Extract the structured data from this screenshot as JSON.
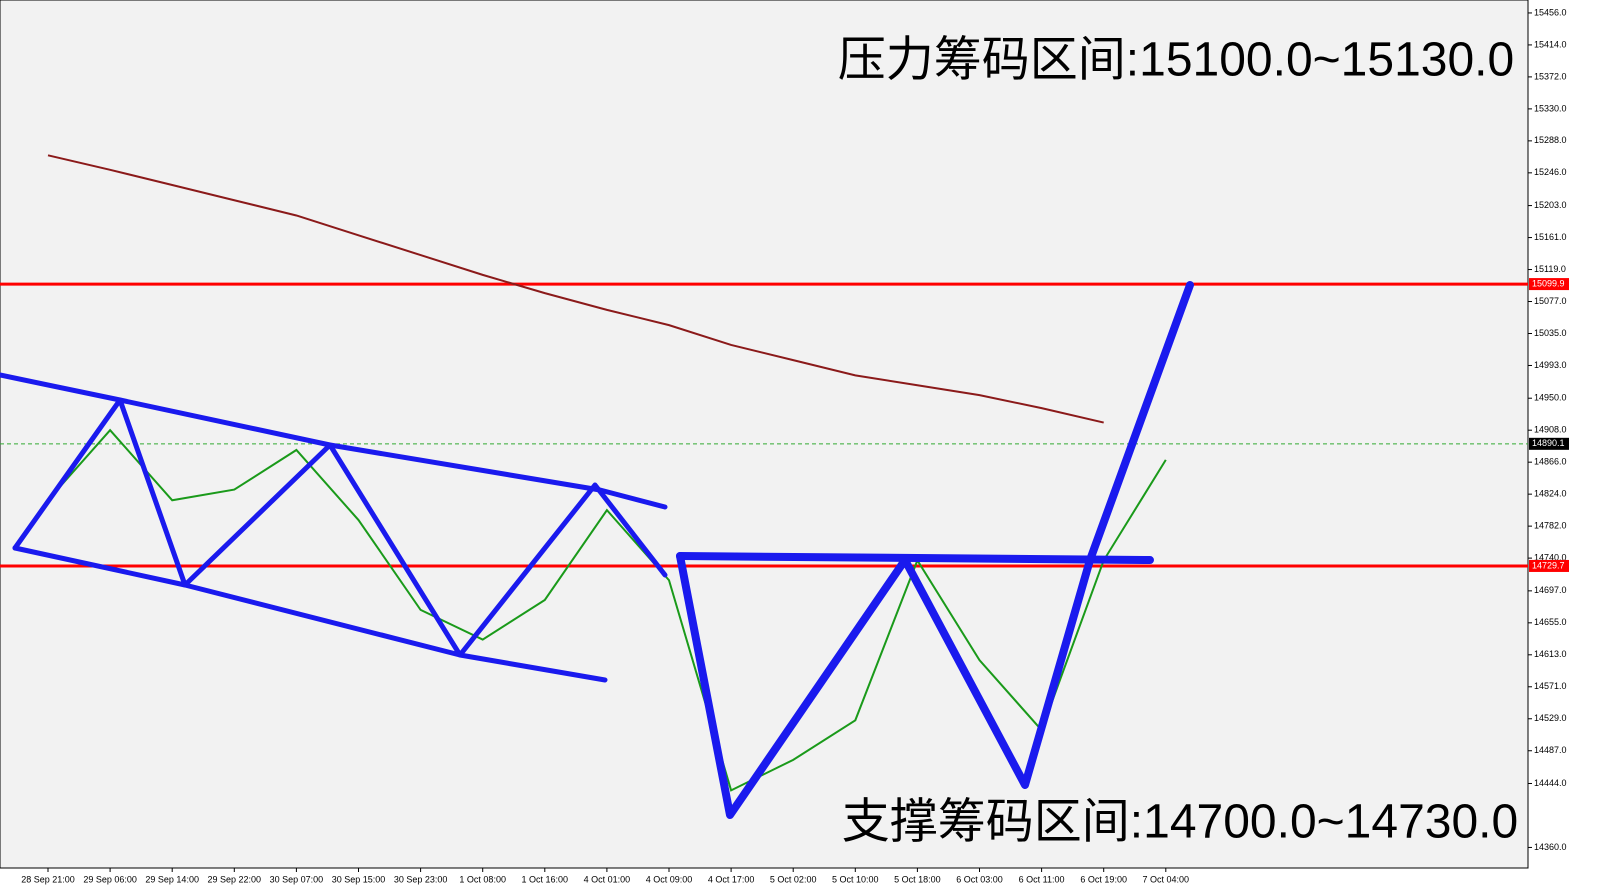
{
  "chart_data": {
    "type": "line",
    "annotations": [
      "压力筹码区间:15100.0~15130.0",
      "支撑筹码区间:14700.0~14730.0"
    ],
    "categories": [
      "28 Sep 21:00",
      "29 Sep 06:00",
      "29 Sep 14:00",
      "29 Sep 22:00",
      "30 Sep 07:00",
      "30 Sep 15:00",
      "30 Sep 23:00",
      "1 Oct 08:00",
      "1 Oct 16:00",
      "4 Oct 01:00",
      "4 Oct 09:00",
      "4 Oct 17:00",
      "5 Oct 02:00",
      "5 Oct 10:00",
      "5 Oct 18:00",
      "6 Oct 03:00",
      "6 Oct 11:00",
      "6 Oct 19:00",
      "7 Oct 04:00"
    ],
    "series": [
      {
        "color": "#1a9a1a",
        "values": [
          14816,
          14908,
          14816,
          14830,
          14882,
          14790,
          14672,
          14633,
          14685,
          14803,
          14711,
          14435,
          14475,
          14527,
          14737,
          14606,
          14514,
          14737,
          14869
        ]
      },
      {
        "color": "#8b1a1a",
        "values": [
          15269,
          15250,
          15230,
          15210,
          15190,
          15164,
          15138,
          15112,
          15088,
          15066,
          15046,
          15020,
          15000,
          14980,
          14967,
          14954,
          14937,
          14918,
          null
        ]
      }
    ],
    "levels": [
      {
        "value": 15099.9,
        "color": "#ff0000"
      },
      {
        "value": 14890.1,
        "color": "#000000"
      },
      {
        "value": 14729.7,
        "color": "#ff0000"
      }
    ],
    "ylim": [
      14333,
      15473
    ],
    "yticks": [
      {
        "value": 15456,
        "label": "15456.0"
      },
      {
        "value": 15414,
        "label": "15414.0"
      },
      {
        "value": 15372,
        "label": "15372.0"
      },
      {
        "value": 15330,
        "label": "15330.0"
      },
      {
        "value": 15288,
        "label": "15288.0"
      },
      {
        "value": 15246,
        "label": "15246.0"
      },
      {
        "value": 15203,
        "label": "15203.0"
      },
      {
        "value": 15161,
        "label": "15161.0"
      },
      {
        "value": 15119,
        "label": "15119.0"
      },
      {
        "value": 15077,
        "label": "15077.0"
      },
      {
        "value": 15035,
        "label": "15035.0"
      },
      {
        "value": 14993,
        "label": "14993.0"
      },
      {
        "value": 14950,
        "label": "14950.0"
      },
      {
        "value": 14908,
        "label": "14908.0"
      },
      {
        "value": 14866,
        "label": "14866.0"
      },
      {
        "value": 14824,
        "label": "14824.0"
      },
      {
        "value": 14782,
        "label": "14782.0"
      },
      {
        "value": 14740,
        "label": "14740.0"
      },
      {
        "value": 14697,
        "label": "14697.0"
      },
      {
        "value": 14655,
        "label": "14655.0"
      },
      {
        "value": 14613,
        "label": "14613.0"
      },
      {
        "value": 14571,
        "label": "14571.0"
      },
      {
        "value": 14529,
        "label": "14529.0"
      },
      {
        "value": 14487,
        "label": "14487.0"
      },
      {
        "value": 14444,
        "label": "14444.0"
      },
      {
        "value": 14360,
        "label": "14360.0"
      }
    ]
  }
}
